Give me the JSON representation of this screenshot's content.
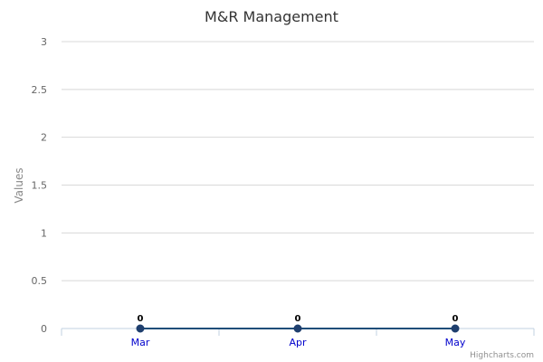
{
  "chart_data": {
    "type": "line",
    "title": "M&R Management",
    "ylabel": "Values",
    "categories": [
      "Mar",
      "Apr",
      "May"
    ],
    "series": [
      {
        "values": [
          0,
          0,
          0
        ]
      }
    ],
    "ylim": [
      0,
      3
    ],
    "yticks": [
      0,
      0.5,
      1,
      1.5,
      2,
      2.5,
      3
    ],
    "ytick_labels": [
      "0",
      "0.5",
      "1",
      "1.5",
      "2",
      "2.5",
      "3"
    ],
    "data_labels": [
      "0",
      "0",
      "0"
    ],
    "grid": true,
    "colors": {
      "line": "#1f4e79",
      "marker": "#1f3f6e",
      "grid": "#d8d8d8",
      "axis": "#c0d0e0",
      "xtick_text": "#0000cc"
    }
  },
  "credits": "Highcharts.com"
}
